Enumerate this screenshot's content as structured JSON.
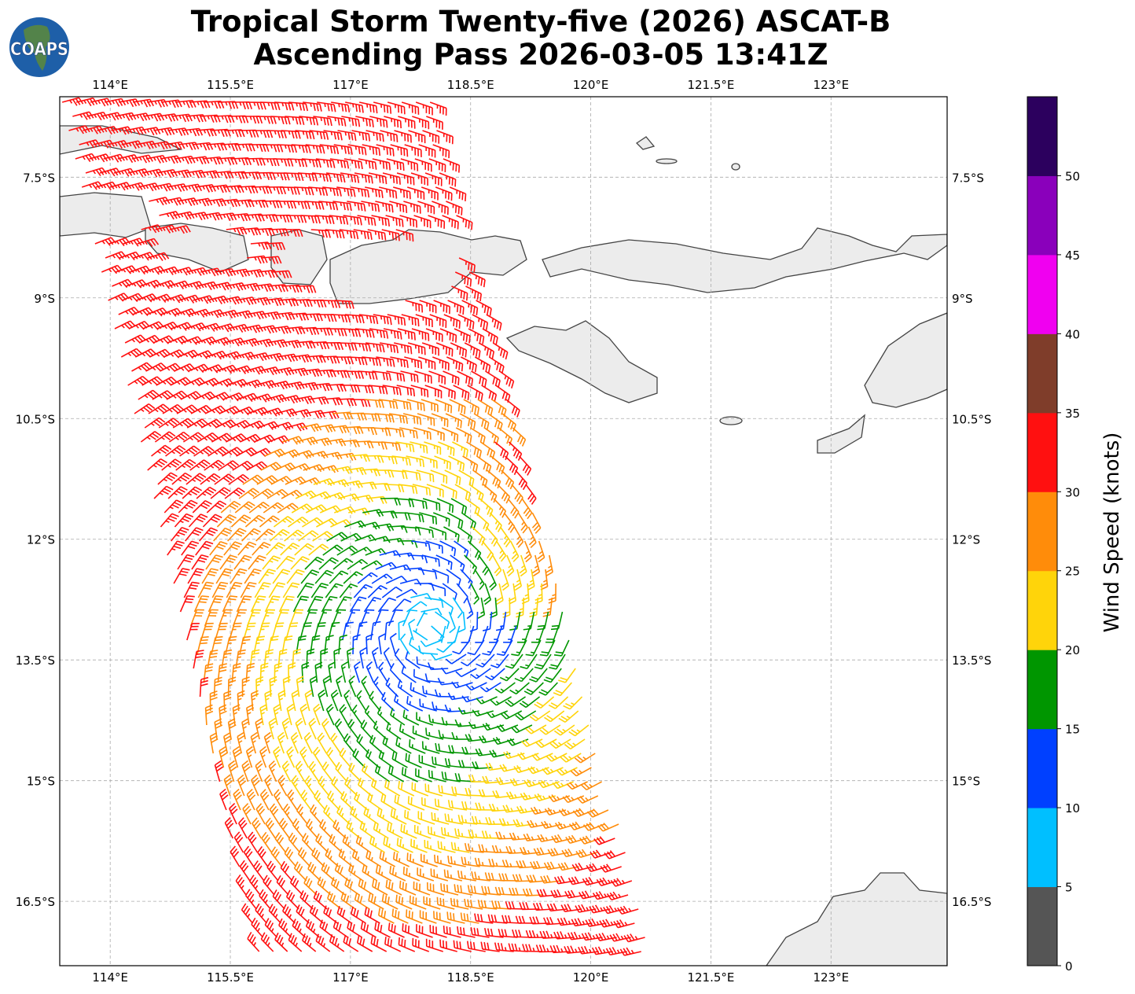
{
  "title": {
    "line1": "Tropical Storm Twenty-five (2026) ASCAT-B",
    "line2": "Ascending Pass 2026-03-05 13:41Z"
  },
  "logo_text": "COAPS",
  "chart_data": {
    "type": "map",
    "title": "Tropical Storm Twenty-five (2026) ASCAT-B Ascending Pass 2026-03-05 13:41Z",
    "lon_ticks": [
      {
        "value": 114.0,
        "label": "114°E"
      },
      {
        "value": 115.5,
        "label": "115.5°E"
      },
      {
        "value": 117.0,
        "label": "117°E"
      },
      {
        "value": 118.5,
        "label": "118.5°E"
      },
      {
        "value": 120.0,
        "label": "120°E"
      },
      {
        "value": 121.5,
        "label": "121.5°E"
      },
      {
        "value": 123.0,
        "label": "123°E"
      }
    ],
    "lat_ticks": [
      {
        "value": -7.5,
        "label": "7.5°S"
      },
      {
        "value": -9.0,
        "label": "9°S"
      },
      {
        "value": -10.5,
        "label": "10.5°S"
      },
      {
        "value": -12.0,
        "label": "12°S"
      },
      {
        "value": -13.5,
        "label": "13.5°S"
      },
      {
        "value": -15.0,
        "label": "15°S"
      },
      {
        "value": -16.5,
        "label": "16.5°S"
      }
    ],
    "lon_range": [
      113.37,
      124.45
    ],
    "lat_range": [
      -17.3,
      -6.5
    ],
    "grid": true,
    "storm_center": {
      "lon": 118.0,
      "lat": -13.1
    },
    "colorbar": {
      "label": "Wind Speed (knots)",
      "ticks": [
        "0",
        "5",
        "10",
        "15",
        "20",
        "25",
        "30",
        "35",
        "40",
        "45",
        "50"
      ],
      "range": [
        0,
        55
      ],
      "bins": [
        {
          "min": 0,
          "max": 5,
          "color": "#555555"
        },
        {
          "min": 5,
          "max": 10,
          "color": "#00bfff"
        },
        {
          "min": 10,
          "max": 15,
          "color": "#0040ff"
        },
        {
          "min": 15,
          "max": 20,
          "color": "#009600"
        },
        {
          "min": 20,
          "max": 25,
          "color": "#ffd40a"
        },
        {
          "min": 25,
          "max": 30,
          "color": "#ff8c0a"
        },
        {
          "min": 30,
          "max": 35,
          "color": "#ff1010"
        },
        {
          "min": 35,
          "max": 40,
          "color": "#7f3d2a"
        },
        {
          "min": 40,
          "max": 45,
          "color": "#f000f0"
        },
        {
          "min": 45,
          "max": 50,
          "color": "#8a00bb"
        },
        {
          "min": 50,
          "max": 55,
          "color": "#2c005e"
        }
      ]
    }
  }
}
